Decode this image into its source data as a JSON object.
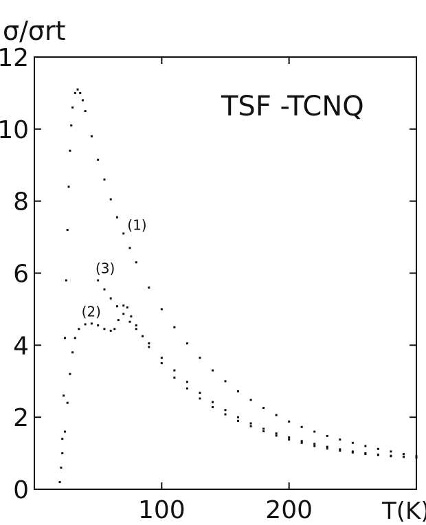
{
  "chart_data": {
    "type": "scatter",
    "title": "TSF -TCNQ",
    "ylabel": "σ/σrt",
    "xlabel": "T(K)",
    "xlim": [
      0,
      300
    ],
    "ylim": [
      0,
      12
    ],
    "x_ticks": [
      100,
      200
    ],
    "y_ticks": [
      0,
      2,
      4,
      6,
      8,
      10,
      12
    ],
    "grid": false,
    "series": [
      {
        "name": "(1)",
        "label_at": [
          73,
          7.2
        ],
        "points": [
          [
            20,
            0.2
          ],
          [
            21,
            0.6
          ],
          [
            22,
            1.4
          ],
          [
            23,
            2.6
          ],
          [
            24,
            4.2
          ],
          [
            25,
            5.8
          ],
          [
            26,
            7.2
          ],
          [
            27,
            8.4
          ],
          [
            28,
            9.4
          ],
          [
            29,
            10.1
          ],
          [
            30,
            10.6
          ],
          [
            32,
            11.0
          ],
          [
            34,
            11.1
          ],
          [
            36,
            11.0
          ],
          [
            38,
            10.8
          ],
          [
            40,
            10.5
          ],
          [
            45,
            9.8
          ],
          [
            50,
            9.15
          ],
          [
            55,
            8.6
          ],
          [
            60,
            8.05
          ],
          [
            65,
            7.55
          ],
          [
            70,
            7.1
          ],
          [
            75,
            6.7
          ],
          [
            80,
            6.3
          ],
          [
            90,
            5.6
          ],
          [
            100,
            5.0
          ],
          [
            110,
            4.5
          ],
          [
            120,
            4.05
          ],
          [
            130,
            3.65
          ],
          [
            140,
            3.3
          ],
          [
            150,
            3.0
          ],
          [
            160,
            2.72
          ],
          [
            170,
            2.48
          ],
          [
            180,
            2.26
          ],
          [
            190,
            2.06
          ],
          [
            200,
            1.88
          ],
          [
            210,
            1.73
          ],
          [
            220,
            1.6
          ],
          [
            230,
            1.48
          ],
          [
            240,
            1.38
          ],
          [
            250,
            1.29
          ],
          [
            260,
            1.2
          ],
          [
            270,
            1.12
          ],
          [
            280,
            1.05
          ],
          [
            290,
            0.98
          ],
          [
            300,
            0.92
          ]
        ]
      },
      {
        "name": "(2)",
        "label_at": [
          37,
          4.8
        ],
        "points": [
          [
            22,
            1.0
          ],
          [
            24,
            1.6
          ],
          [
            26,
            2.4
          ],
          [
            28,
            3.2
          ],
          [
            30,
            3.8
          ],
          [
            32,
            4.2
          ],
          [
            35,
            4.45
          ],
          [
            40,
            4.58
          ],
          [
            45,
            4.6
          ],
          [
            50,
            4.55
          ],
          [
            55,
            4.45
          ],
          [
            60,
            4.4
          ],
          [
            63,
            4.45
          ],
          [
            66,
            4.7
          ],
          [
            70,
            5.1
          ],
          [
            73,
            5.05
          ],
          [
            76,
            4.8
          ],
          [
            80,
            4.55
          ],
          [
            85,
            4.25
          ],
          [
            90,
            3.95
          ],
          [
            100,
            3.5
          ],
          [
            110,
            3.1
          ],
          [
            120,
            2.8
          ],
          [
            130,
            2.52
          ],
          [
            140,
            2.28
          ],
          [
            150,
            2.08
          ],
          [
            160,
            1.9
          ],
          [
            170,
            1.75
          ],
          [
            180,
            1.61
          ],
          [
            190,
            1.49
          ],
          [
            200,
            1.38
          ],
          [
            210,
            1.29
          ],
          [
            220,
            1.2
          ],
          [
            230,
            1.13
          ],
          [
            240,
            1.07
          ],
          [
            250,
            1.02
          ],
          [
            260,
            0.98
          ],
          [
            270,
            0.95
          ],
          [
            280,
            0.92
          ],
          [
            290,
            0.9
          ],
          [
            300,
            0.88
          ]
        ]
      },
      {
        "name": "(3)",
        "label_at": [
          48,
          6.0
        ],
        "points": [
          [
            50,
            5.8
          ],
          [
            55,
            5.55
          ],
          [
            60,
            5.3
          ],
          [
            65,
            5.08
          ],
          [
            70,
            4.87
          ],
          [
            75,
            4.65
          ],
          [
            80,
            4.45
          ],
          [
            90,
            4.05
          ],
          [
            100,
            3.65
          ],
          [
            110,
            3.3
          ],
          [
            120,
            2.98
          ],
          [
            130,
            2.68
          ],
          [
            140,
            2.42
          ],
          [
            150,
            2.2
          ],
          [
            160,
            2.0
          ],
          [
            170,
            1.83
          ],
          [
            180,
            1.68
          ],
          [
            190,
            1.55
          ],
          [
            200,
            1.44
          ],
          [
            210,
            1.34
          ],
          [
            220,
            1.26
          ],
          [
            230,
            1.18
          ],
          [
            240,
            1.11
          ],
          [
            250,
            1.05
          ],
          [
            260,
            1.0
          ],
          [
            270,
            0.96
          ],
          [
            280,
            0.93
          ],
          [
            290,
            0.9
          ],
          [
            300,
            0.88
          ]
        ]
      }
    ]
  }
}
